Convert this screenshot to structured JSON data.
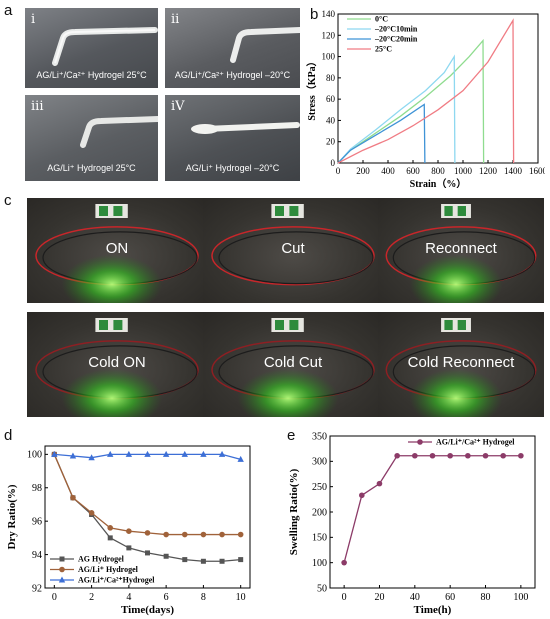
{
  "panels": {
    "a": {
      "letter": "a",
      "photos": [
        {
          "roman": "i",
          "caption": "AG/Li⁺/Ca²⁺ Hydrogel 25°C"
        },
        {
          "roman": "ii",
          "caption": "AG/Li⁺/Ca²⁺ Hydrogel –20°C"
        },
        {
          "roman": "iii",
          "caption": "AG/Li⁺ Hydrogel 25°C"
        },
        {
          "roman": "iV",
          "caption": "AG/Li⁺ Hydrogel –20°C"
        }
      ]
    },
    "b": {
      "letter": "b"
    },
    "c": {
      "letter": "c",
      "photos": [
        "ON",
        "Cut",
        "Reconnect",
        "Cold ON",
        "Cold Cut",
        "Cold Reconnect"
      ]
    },
    "d": {
      "letter": "d"
    },
    "e": {
      "letter": "e"
    }
  },
  "chart_data": [
    {
      "id": "b",
      "type": "line",
      "xlabel": "Strain（%）",
      "ylabel": "Stress（KPa）",
      "xlim": [
        0,
        1600
      ],
      "ylim": [
        0,
        140
      ],
      "xticks": [
        0,
        200,
        400,
        600,
        800,
        1000,
        1200,
        1400,
        1600
      ],
      "yticks": [
        0,
        20,
        40,
        60,
        80,
        100,
        120,
        140
      ],
      "legend_position": "top-left",
      "series": [
        {
          "name": "0°C",
          "color": "#8fdc8f",
          "x": [
            0,
            100,
            300,
            500,
            700,
            900,
            1050,
            1160,
            1165
          ],
          "y": [
            0,
            12,
            28,
            44,
            62,
            82,
            100,
            115,
            0
          ]
        },
        {
          "name": "–20°C10min",
          "color": "#8ed8f0",
          "x": [
            0,
            100,
            300,
            500,
            700,
            850,
            930,
            935
          ],
          "y": [
            0,
            13,
            31,
            50,
            68,
            85,
            100,
            0
          ]
        },
        {
          "name": "–20°C20min",
          "color": "#3f93d6",
          "x": [
            0,
            100,
            300,
            500,
            690,
            695
          ],
          "y": [
            0,
            12,
            26,
            40,
            55,
            0
          ]
        },
        {
          "name": "25°C",
          "color": "#f07c84",
          "x": [
            0,
            200,
            400,
            600,
            800,
            1000,
            1200,
            1400,
            1405
          ],
          "y": [
            0,
            12,
            22,
            35,
            50,
            68,
            95,
            134,
            0
          ]
        }
      ]
    },
    {
      "id": "d",
      "type": "line",
      "xlabel": "Time(days)",
      "ylabel": "Dry Ratio(%)",
      "xlim": [
        -0.5,
        10.5
      ],
      "ylim": [
        92,
        100.5
      ],
      "xticks": [
        0,
        2,
        4,
        6,
        8,
        10
      ],
      "yticks": [
        92,
        94,
        96,
        98,
        100
      ],
      "legend_position": "bottom-left",
      "series": [
        {
          "name": "AG Hydrogel",
          "color": "#555555",
          "marker": "square",
          "x": [
            0,
            1,
            2,
            3,
            4,
            5,
            6,
            7,
            8,
            9,
            10
          ],
          "y": [
            100,
            97.4,
            96.4,
            95.0,
            94.4,
            94.1,
            93.9,
            93.7,
            93.6,
            93.6,
            93.7
          ]
        },
        {
          "name": "AG/Li⁺ Hydrogel",
          "color": "#a0623a",
          "marker": "circle",
          "x": [
            0,
            1,
            2,
            3,
            4,
            5,
            6,
            7,
            8,
            9,
            10
          ],
          "y": [
            100,
            97.4,
            96.5,
            95.6,
            95.4,
            95.3,
            95.2,
            95.2,
            95.2,
            95.2,
            95.2
          ]
        },
        {
          "name": "AG/Li⁺/Ca²⁺Hydrogel",
          "color": "#3d6fd6",
          "marker": "triangle",
          "x": [
            0,
            1,
            2,
            3,
            4,
            5,
            6,
            7,
            8,
            9,
            10
          ],
          "y": [
            100,
            99.9,
            99.8,
            100,
            100,
            100,
            100,
            100,
            100,
            100,
            99.7
          ]
        }
      ]
    },
    {
      "id": "e",
      "type": "line",
      "xlabel": "Time(h)",
      "ylabel": "Swelling Ratio(%)",
      "xlim": [
        -8,
        108
      ],
      "ylim": [
        50,
        350
      ],
      "xticks": [
        0,
        20,
        40,
        60,
        80,
        100
      ],
      "yticks": [
        50,
        100,
        150,
        200,
        250,
        300,
        350
      ],
      "legend_position": "top-right",
      "series": [
        {
          "name": "AG/Li⁺/Ca²⁺ Hydrogel",
          "color": "#8c3b68",
          "marker": "circle",
          "x": [
            0,
            10,
            20,
            30,
            40,
            50,
            60,
            70,
            80,
            90,
            100
          ],
          "y": [
            100,
            233,
            256,
            311,
            311,
            311,
            311,
            311,
            311,
            311,
            311
          ]
        }
      ]
    }
  ]
}
